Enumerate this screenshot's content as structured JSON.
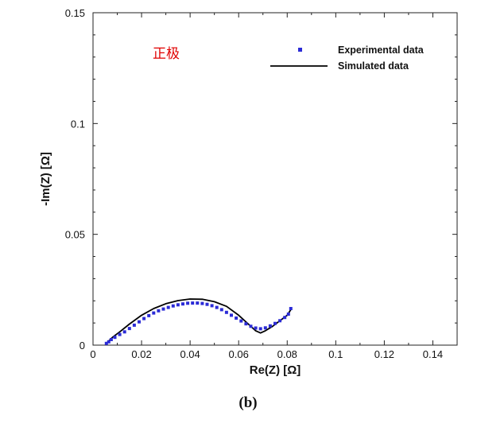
{
  "chart_data": {
    "type": "scatter",
    "title": "",
    "xlabel": "Re(Z) [Ω]",
    "ylabel": "-Im(Z) [Ω]",
    "xlim": [
      0,
      0.15
    ],
    "ylim": [
      0,
      0.15
    ],
    "x_ticks": [
      0,
      0.02,
      0.04,
      0.06,
      0.08,
      0.1,
      0.12,
      0.14
    ],
    "x_tick_labels": [
      "0",
      "0.02",
      "0.04",
      "0.06",
      "0.08",
      "0.1",
      "0.12",
      "0.14"
    ],
    "y_ticks": [
      0,
      0.05,
      0.1,
      0.15
    ],
    "y_tick_labels": [
      "0",
      "0.05",
      "0.1",
      "0.15"
    ],
    "grid": false,
    "legend_position": "top-right",
    "annotation": "正极",
    "panel_label": "(b)",
    "colors": {
      "experimental": "#2b2bd6",
      "simulated": "#000000",
      "annotation": "#e00000"
    },
    "series": [
      {
        "name": "Experimental data",
        "kind": "scatter",
        "x": [
          0.0055,
          0.0065,
          0.0075,
          0.009,
          0.011,
          0.013,
          0.015,
          0.017,
          0.019,
          0.021,
          0.023,
          0.025,
          0.027,
          0.029,
          0.031,
          0.033,
          0.035,
          0.037,
          0.039,
          0.041,
          0.043,
          0.045,
          0.047,
          0.049,
          0.051,
          0.053,
          0.055,
          0.057,
          0.059,
          0.061,
          0.063,
          0.065,
          0.067,
          0.069,
          0.071,
          0.073,
          0.075,
          0.077,
          0.079,
          0.0805,
          0.0815
        ],
        "y": [
          0.0008,
          0.0015,
          0.0025,
          0.0035,
          0.0048,
          0.006,
          0.0075,
          0.009,
          0.0105,
          0.012,
          0.0133,
          0.0145,
          0.0155,
          0.0163,
          0.017,
          0.0177,
          0.0182,
          0.0186,
          0.0189,
          0.019,
          0.019,
          0.0188,
          0.0184,
          0.0178,
          0.017,
          0.016,
          0.0148,
          0.0135,
          0.0122,
          0.0109,
          0.0096,
          0.0085,
          0.0077,
          0.0074,
          0.0078,
          0.0087,
          0.0098,
          0.011,
          0.0125,
          0.014,
          0.0165
        ]
      },
      {
        "name": "Simulated data",
        "kind": "line",
        "x": [
          0.0055,
          0.008,
          0.011,
          0.015,
          0.02,
          0.025,
          0.03,
          0.035,
          0.04,
          0.045,
          0.05,
          0.055,
          0.06,
          0.064,
          0.067,
          0.069,
          0.071,
          0.074,
          0.077,
          0.08,
          0.0815
        ],
        "y": [
          0.0008,
          0.0035,
          0.006,
          0.0095,
          0.0135,
          0.0165,
          0.0187,
          0.0201,
          0.0208,
          0.0207,
          0.0196,
          0.0175,
          0.0135,
          0.0095,
          0.0065,
          0.0055,
          0.0065,
          0.0085,
          0.011,
          0.0135,
          0.016
        ]
      }
    ]
  }
}
